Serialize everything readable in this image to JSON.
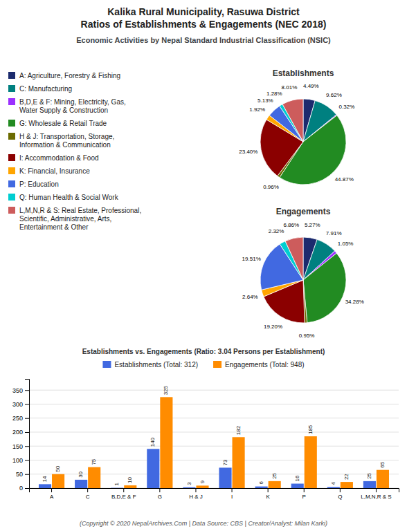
{
  "title": "Kalika Rural Municipality, Rasuwa District\nRatios of Establishments & Engagements (NEC 2018)",
  "subtitle": "Economic Activities by Nepal Standard Industrial Classification (NSIC)",
  "annotations": [
    "(Copyright © 2020 NepalArchives.Com | Data Source: CBS | Creator/Analyst: Milan Karki)"
  ],
  "chart_data": [
    {
      "type": "pie",
      "title": "Establishments",
      "categories": [
        "A: Agriculture, Forestry & Fishing",
        "C: Manufacturing",
        "B,D,E & F: Mining, Electricity, Gas,\nWater Supply & Construction",
        "G: Wholesale & Retail Trade",
        "H & J: Transportation, Storage,\nInformation & Communication",
        "I: Accommodation & Food",
        "K: Financial, Insurance",
        "P: Education",
        "Q: Human Health & Social Work",
        "L,M,N,R & S: Real Estate, Professional,\nScientific, Administrative, Arts,\nEntertainment & Other"
      ],
      "values": [
        4.49,
        9.62,
        0.32,
        44.87,
        0.96,
        23.4,
        1.92,
        5.13,
        1.28,
        8.01
      ],
      "value_labels": [
        "4.49%",
        "9.62%",
        "0.32%",
        "44.87%",
        "0.96%",
        "23.40%",
        "1.92%",
        "5.13%",
        "1.28%",
        "8.01%"
      ],
      "colors": [
        "#1C2B6E",
        "#008080",
        "#9B30FF",
        "#228B22",
        "#6B6B00",
        "#8B0000",
        "#FFA500",
        "#4169E1",
        "#00CED1",
        "#CD5C5C"
      ],
      "data_labels": true,
      "legend": "upper left"
    },
    {
      "type": "pie",
      "title": "Engagements",
      "values": [
        5.27,
        7.91,
        1.05,
        34.28,
        0.95,
        19.2,
        2.64,
        19.51,
        2.32,
        6.86
      ],
      "value_labels": [
        "5.27%",
        "7.91%",
        "1.05%",
        "34.28%",
        "0.95%",
        "19.20%",
        "2.64%",
        "19.51%",
        "2.32%",
        "6.86%"
      ],
      "colors": [
        "#1C2B6E",
        "#008080",
        "#9B30FF",
        "#228B22",
        "#6B6B00",
        "#8B0000",
        "#FFA500",
        "#4169E1",
        "#00CED1",
        "#CD5C5C"
      ],
      "data_labels": true
    },
    {
      "type": "bar",
      "title": "Establishments vs. Engagements (Ratio: 3.04 Persons per Establishment)",
      "categories": [
        "A",
        "C",
        "B,D,E & F",
        "G",
        "H & J",
        "I",
        "K",
        "P",
        "Q",
        "L,M,N,R & S"
      ],
      "series": [
        {
          "name": "Establishments (Total: 312)",
          "color": "#4169E1",
          "values": [
            14,
            30,
            1,
            140,
            3,
            73,
            6,
            16,
            4,
            25
          ]
        },
        {
          "name": "Engagements (Total: 948)",
          "color": "#FF8C00",
          "values": [
            50,
            75,
            10,
            325,
            9,
            182,
            25,
            185,
            22,
            65
          ]
        }
      ],
      "ylim": [
        0,
        390
      ],
      "yticks": [
        0,
        50,
        100,
        150,
        200,
        250,
        300,
        350
      ],
      "grid": true,
      "data_labels": true,
      "legend": "upper center"
    }
  ]
}
